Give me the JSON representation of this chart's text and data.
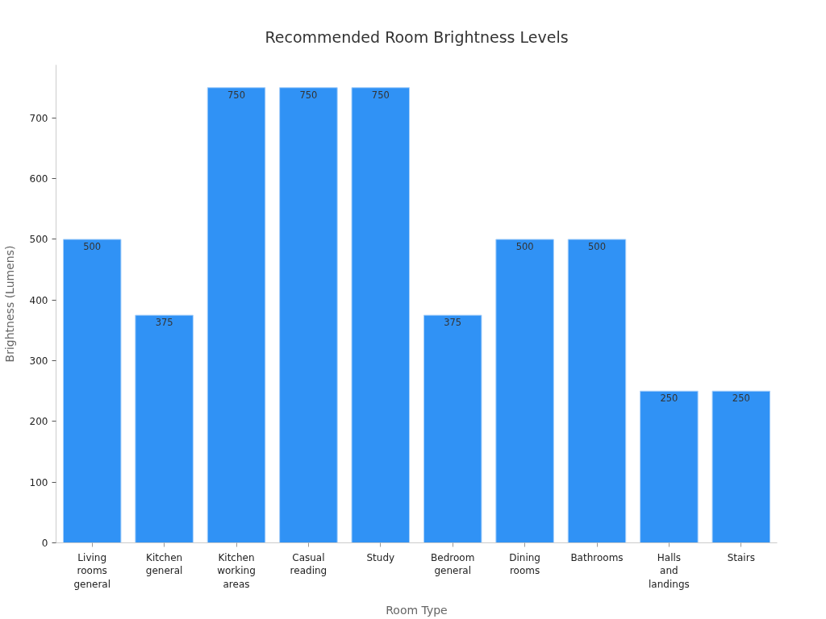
{
  "chart_data": {
    "type": "bar",
    "title": "Recommended Room Brightness Levels",
    "xlabel": "Room Type",
    "ylabel": "Brightness (Lumens)",
    "categories": [
      "Living rooms general",
      "Kitchen general",
      "Kitchen working areas",
      "Casual reading",
      "Study",
      "Bedroom general",
      "Dining rooms",
      "Bathrooms",
      "Halls and landings",
      "Stairs"
    ],
    "values": [
      500,
      375,
      750,
      750,
      750,
      375,
      500,
      500,
      250,
      250
    ],
    "color": "#3092f5",
    "ylim": [
      0,
      787.5
    ],
    "yticks": [
      0,
      100,
      200,
      300,
      400,
      500,
      600,
      700
    ],
    "data_labels": true
  }
}
